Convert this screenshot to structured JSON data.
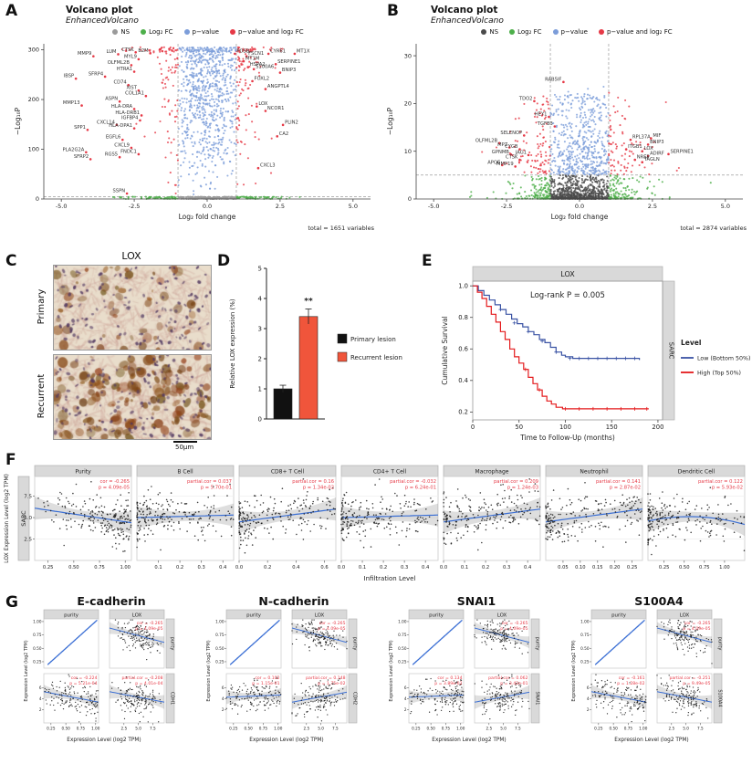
{
  "colors": {
    "ns_light": "#9a9a9a",
    "ns_dark": "#4a4a4a",
    "fc": "#4daf4a",
    "p": "#7c9dd9",
    "pfc": "#e63946",
    "km_low": "#3a53a4",
    "km_high": "#e41a1c",
    "bar_primary": "#111111",
    "bar_recurrent": "#f0553b",
    "loess": "#3b6fd4",
    "strip": "#d9d9d9",
    "annotation": "#e63946"
  },
  "panelA": {
    "letter": "A",
    "title": "Volcano plot",
    "subtitle": "EnhancedVolcano",
    "mode": "A",
    "seed": 11,
    "nsColor": "#9a9a9a",
    "legend": [
      {
        "label": "NS",
        "color": "#9a9a9a"
      },
      {
        "label": "Log₂ FC",
        "color": "#4daf4a"
      },
      {
        "label": "p−value",
        "color": "#7c9dd9"
      },
      {
        "label": "p−value and log₂ FC",
        "color": "#e63946"
      }
    ],
    "xlabel": "Log₂ fold change",
    "ylabel": "−Log₁₀P",
    "xticks": [
      -5.0,
      -2.5,
      0.0,
      2.5,
      5.0
    ],
    "yticks": [
      0,
      100,
      200,
      300
    ],
    "xlim": [
      -5.6,
      5.6
    ],
    "ylim": [
      0,
      312
    ],
    "vlines": [
      -1,
      1
    ],
    "hline": 5,
    "total": "total = 1651 variables",
    "genes": [
      [
        "MMP9",
        -3.9,
        287
      ],
      [
        "LUM",
        -3.05,
        291
      ],
      [
        "CTSK",
        -2.45,
        295
      ],
      [
        "B2M",
        -1.95,
        293
      ],
      [
        "MYL9",
        -2.35,
        281
      ],
      [
        "OLFML2B",
        -2.6,
        269
      ],
      [
        "HTRA1",
        -2.5,
        256
      ],
      [
        "IBSP",
        -4.5,
        242
      ],
      [
        "SFRP4",
        -3.5,
        246
      ],
      [
        "CD74",
        -2.7,
        229
      ],
      [
        "XIST",
        -2.35,
        218
      ],
      [
        "COL1A1",
        -2.1,
        207
      ],
      [
        "ASPN",
        -3.0,
        196
      ],
      [
        "MMP13",
        -4.3,
        188
      ],
      [
        "HLA-DRA",
        -2.5,
        181
      ],
      [
        "HLA-DRB1",
        -2.25,
        168
      ],
      [
        "IGFBP4",
        -2.3,
        158
      ],
      [
        "CXCL14",
        -3.1,
        149
      ],
      [
        "HLA-DPA1",
        -2.5,
        142
      ],
      [
        "SPP1",
        -4.1,
        139
      ],
      [
        "EGFL6",
        -2.9,
        119
      ],
      [
        "CXCL9",
        -2.6,
        103
      ],
      [
        "PLA2G2A",
        -4.15,
        94
      ],
      [
        "FNDC1",
        -2.35,
        90
      ],
      [
        "RGS5",
        -3.0,
        84
      ],
      [
        "SFRP2",
        -4.0,
        80
      ],
      [
        "SSPN",
        -2.75,
        11
      ],
      [
        "FOSB",
        0.95,
        292
      ],
      [
        "FSCN1",
        1.35,
        287
      ],
      [
        "CYR61",
        2.1,
        292
      ],
      [
        "MT1X",
        3.0,
        292
      ],
      [
        "MT1M",
        1.25,
        277
      ],
      [
        "SERPINE1",
        2.35,
        271
      ],
      [
        "HSPA2",
        1.4,
        265
      ],
      [
        "S100A6",
        1.6,
        261
      ],
      [
        "BNIP3",
        2.5,
        254
      ],
      [
        "FOXL2",
        1.55,
        237
      ],
      [
        "ANGPTL4",
        2.0,
        221
      ],
      [
        "LOX",
        1.7,
        186
      ],
      [
        "NCOR1",
        2.0,
        177
      ],
      [
        "PLIN2",
        2.6,
        149
      ],
      [
        "CA2",
        2.4,
        126
      ],
      [
        "CXCL3",
        1.75,
        62
      ]
    ]
  },
  "panelB": {
    "letter": "B",
    "title": "Volcano plot",
    "subtitle": "EnhancedVolcano",
    "mode": "B",
    "seed": 77,
    "nsColor": "#4a4a4a",
    "legend": [
      {
        "label": "NS",
        "color": "#4a4a4a"
      },
      {
        "label": "Log₂ FC",
        "color": "#4daf4a"
      },
      {
        "label": "p−value",
        "color": "#7c9dd9"
      },
      {
        "label": "p−value and log₂ FC",
        "color": "#e63946"
      }
    ],
    "xlabel": "Log₂ fold change",
    "ylabel": "−Log₁₀P",
    "xticks": [
      -5.0,
      -2.5,
      0.0,
      2.5,
      5.0
    ],
    "yticks": [
      0,
      10,
      20,
      30
    ],
    "xlim": [
      -5.6,
      5.6
    ],
    "ylim": [
      0,
      32.5
    ],
    "vlines": [
      -1,
      1
    ],
    "hline": 5,
    "total": "total = 2874 variables",
    "genes": [
      [
        "RAB5IF",
        -0.55,
        24.5
      ],
      [
        "TDO2",
        -1.55,
        20.5
      ],
      [
        "HEY1",
        -1.05,
        17.2
      ],
      [
        "TGFB3",
        -0.85,
        15.2
      ],
      [
        "SELENOP",
        -1.9,
        13.3
      ],
      [
        "OLFML2B",
        -2.75,
        11.7
      ],
      [
        "MPZ",
        -2.4,
        10.8
      ],
      [
        "CYGB",
        -2.05,
        10.4
      ],
      [
        "GPNMB",
        -2.35,
        9.3
      ],
      [
        "JAG1",
        -1.75,
        9.2
      ],
      [
        "CTSK",
        -2.05,
        8.2
      ],
      [
        "APOE",
        -2.65,
        7.1
      ],
      [
        "MMP19",
        -2.2,
        6.8
      ],
      [
        "RPL37A",
        1.75,
        12.4
      ],
      [
        "MIF",
        2.45,
        12.7
      ],
      [
        "BNIP3",
        2.35,
        11.4
      ],
      [
        "ITGB1",
        1.6,
        10.4
      ],
      [
        "LOX",
        2.15,
        10.0
      ],
      [
        "ADIRF",
        2.35,
        9.0
      ],
      [
        "SERPINE1",
        3.05,
        9.4
      ],
      [
        "NREP",
        1.9,
        8.2
      ],
      [
        "TAGLN",
        2.15,
        7.7
      ]
    ]
  },
  "panelC": {
    "letter": "C",
    "title": "LOX",
    "rows": [
      "Primary",
      "Recurrent"
    ],
    "scalebar": "50µm"
  },
  "panelD": {
    "letter": "D",
    "ylabel": "Relative LOX expression (%)",
    "ymax": 5,
    "yticks": [
      0,
      1,
      2,
      3,
      4,
      5
    ],
    "categories": [
      "Primary lesion",
      "Recurrent lesion"
    ],
    "values": [
      1.0,
      3.4
    ],
    "errors": [
      0.12,
      0.25
    ],
    "sig": "**",
    "legend": [
      {
        "label": "Primary lesion",
        "color": "#111111"
      },
      {
        "label": "Recurrent lesion",
        "color": "#f0553b"
      }
    ]
  },
  "panelE": {
    "letter": "E",
    "strip_top": "LOX",
    "strip_right": "SARC",
    "annotation": "Log-rank P = 0.005",
    "xlabel": "Time to Follow-Up (months)",
    "ylabel": "Cumulative Survival",
    "xmax": 205,
    "xticks": [
      0,
      50,
      100,
      150,
      200
    ],
    "yticks": [
      0.2,
      0.4,
      0.6,
      0.8,
      1.0
    ],
    "legend_title": "Level",
    "legend": [
      {
        "label": "Low (Bottom 50%)",
        "color": "#3a53a4"
      },
      {
        "label": "High (Top 50%)",
        "color": "#e41a1c"
      }
    ],
    "curve_low": [
      [
        0,
        1
      ],
      [
        6,
        0.97
      ],
      [
        12,
        0.94
      ],
      [
        18,
        0.91
      ],
      [
        24,
        0.88
      ],
      [
        30,
        0.85
      ],
      [
        36,
        0.82
      ],
      [
        42,
        0.79
      ],
      [
        48,
        0.76
      ],
      [
        54,
        0.74
      ],
      [
        60,
        0.71
      ],
      [
        66,
        0.69
      ],
      [
        72,
        0.66
      ],
      [
        78,
        0.64
      ],
      [
        84,
        0.61
      ],
      [
        90,
        0.58
      ],
      [
        96,
        0.56
      ],
      [
        100,
        0.55
      ],
      [
        108,
        0.54
      ],
      [
        175,
        0.54
      ],
      [
        180,
        0.53
      ]
    ],
    "curve_high": [
      [
        0,
        1
      ],
      [
        5,
        0.96
      ],
      [
        10,
        0.92
      ],
      [
        15,
        0.87
      ],
      [
        20,
        0.82
      ],
      [
        25,
        0.77
      ],
      [
        30,
        0.71
      ],
      [
        35,
        0.66
      ],
      [
        40,
        0.6
      ],
      [
        45,
        0.55
      ],
      [
        50,
        0.51
      ],
      [
        55,
        0.47
      ],
      [
        60,
        0.42
      ],
      [
        65,
        0.38
      ],
      [
        70,
        0.34
      ],
      [
        75,
        0.3
      ],
      [
        80,
        0.27
      ],
      [
        85,
        0.25
      ],
      [
        90,
        0.23
      ],
      [
        97,
        0.22
      ],
      [
        190,
        0.22
      ]
    ],
    "censors_low": [
      [
        30,
        0.85
      ],
      [
        45,
        0.765
      ],
      [
        60,
        0.71
      ],
      [
        75,
        0.65
      ],
      [
        90,
        0.58
      ],
      [
        105,
        0.54
      ],
      [
        115,
        0.54
      ],
      [
        125,
        0.54
      ],
      [
        135,
        0.54
      ],
      [
        145,
        0.54
      ],
      [
        155,
        0.54
      ],
      [
        165,
        0.54
      ],
      [
        175,
        0.54
      ]
    ],
    "censors_high": [
      [
        57,
        0.47
      ],
      [
        72,
        0.34
      ],
      [
        100,
        0.22
      ],
      [
        115,
        0.22
      ],
      [
        130,
        0.22
      ],
      [
        145,
        0.22
      ],
      [
        160,
        0.22
      ],
      [
        175,
        0.22
      ],
      [
        188,
        0.22
      ]
    ]
  },
  "panelF": {
    "letter": "F",
    "ylabel": "LOX Expression Level (log2 TPM)",
    "xlabel": "Infiltration Level",
    "strip": "SARC",
    "yticks": [
      2.5,
      5.0,
      7.5
    ],
    "panels": [
      {
        "title": "Purity",
        "ann": [
          "cor = -0.265",
          "p = 4.09e-05"
        ],
        "xlim": [
          0.12,
          1.06
        ],
        "xticks": [
          0.25,
          0.5,
          0.75,
          1.0
        ],
        "xlabels": [
          "0.25",
          "0.50",
          "0.75",
          "1.00"
        ],
        "skew": 0.55,
        "trend": "down"
      },
      {
        "title": "B Cell",
        "ann": [
          "partial.cor = 0.037",
          "p = 5.70e-01"
        ],
        "xlim": [
          0,
          0.45
        ],
        "xticks": [
          0.1,
          0.2,
          0.3,
          0.4
        ],
        "xlabels": [
          "0.1",
          "0.2",
          "0.3",
          "0.4"
        ],
        "skew": 2.0,
        "trend": "flat"
      },
      {
        "title": "CD8+ T Cell",
        "ann": [
          "partial.cor = 0.16",
          "p = 1.34e-02"
        ],
        "xlim": [
          0,
          0.68
        ],
        "xticks": [
          0.0,
          0.2,
          0.4,
          0.6
        ],
        "xlabels": [
          "0.0",
          "0.2",
          "0.4",
          "0.6"
        ],
        "skew": 1.9,
        "trend": "up"
      },
      {
        "title": "CD4+ T Cell",
        "ann": [
          "partial.cor = -0.032",
          "p = 6.24e-01"
        ],
        "xlim": [
          0,
          0.46
        ],
        "xticks": [
          0.0,
          0.1,
          0.2,
          0.3,
          0.4
        ],
        "xlabels": [
          "0.0",
          "0.1",
          "0.2",
          "0.3",
          "0.4"
        ],
        "skew": 1.9,
        "trend": "flat"
      },
      {
        "title": "Macrophage",
        "ann": [
          "partial.cor = 0.209",
          "p = 1.24e-03"
        ],
        "xlim": [
          0,
          0.46
        ],
        "xticks": [
          0.0,
          0.1,
          0.2,
          0.3,
          0.4
        ],
        "xlabels": [
          "0.0",
          "0.1",
          "0.2",
          "0.3",
          "0.4"
        ],
        "skew": 1.6,
        "trend": "up"
      },
      {
        "title": "Neutrophil",
        "ann": [
          "partial.cor = 0.141",
          "p = 2.87e-02"
        ],
        "xlim": [
          0,
          0.28
        ],
        "xticks": [
          0.05,
          0.1,
          0.15,
          0.2,
          0.25
        ],
        "xlabels": [
          "0.05",
          "0.10",
          "0.15",
          "0.20",
          "0.25"
        ],
        "skew": 1.8,
        "trend": "up"
      },
      {
        "title": "Dendritic Cell",
        "ann": [
          "partial.cor = 0.122",
          "p = 5.93e-02"
        ],
        "xlim": [
          0.05,
          1.25
        ],
        "xticks": [
          0.25,
          0.5,
          0.75,
          1.0
        ],
        "xlabels": [
          "0.25",
          "0.50",
          "0.75",
          "1.00"
        ],
        "skew": 1.9,
        "trend": "updown"
      }
    ]
  },
  "panelG": {
    "letter": "G",
    "ylabel": "Expression Level (log2 TPM)",
    "xlabel": "Expression Level (log2 TPM)",
    "cols": [
      "purity",
      "LOX"
    ],
    "leftTicks": {
      "v": [
        0.25,
        0.5,
        0.75,
        1.0
      ],
      "l": [
        "0.25",
        "0.50",
        "0.75",
        "1.00"
      ]
    },
    "rightTicks": {
      "v": [
        2.5,
        5.0,
        7.5
      ],
      "l": [
        "2.5",
        "5.0",
        "7.5"
      ]
    },
    "exprTicks": {
      "v": [
        2,
        4,
        6
      ],
      "l": [
        "2",
        "4",
        "6"
      ]
    },
    "tr_ann": [
      "cor = -0.265",
      "p = 4.09e-05"
    ],
    "groups": [
      {
        "title": "E-cadherin",
        "gene": "CDH1",
        "seed": 301,
        "bl_trend": "down",
        "br_trend": "down",
        "bl_ann": [
          "cor = -0.224",
          "p = 5.21e-04"
        ],
        "br_ann": [
          "partial.cor = -0.208",
          "p = 4.01e-04"
        ]
      },
      {
        "title": "N-cadherin",
        "gene": "CDH2",
        "seed": 302,
        "bl_trend": "flat",
        "br_trend": "up",
        "bl_ann": [
          "cor = 0.102",
          "p = 1.15e-01"
        ],
        "br_ann": [
          "partial.cor = 0.148",
          "p = 1.75e-02"
        ]
      },
      {
        "title": "SNAI1",
        "gene": "SNAI1",
        "seed": 303,
        "bl_trend": "flat",
        "br_trend": "up",
        "bl_ann": [
          "cor = 0.134",
          "p = 3.89e-02"
        ],
        "br_ann": [
          "partial.cor = 0.062",
          "p = 3.42e-01"
        ]
      },
      {
        "title": "S100A4",
        "gene": "S100A4",
        "seed": 304,
        "bl_trend": "down",
        "br_trend": "down",
        "bl_ann": [
          "cor = -0.161",
          "p = 1.28e-02"
        ],
        "br_ann": [
          "partial.cor = -0.251",
          "p = 9.49e-05"
        ]
      }
    ]
  }
}
